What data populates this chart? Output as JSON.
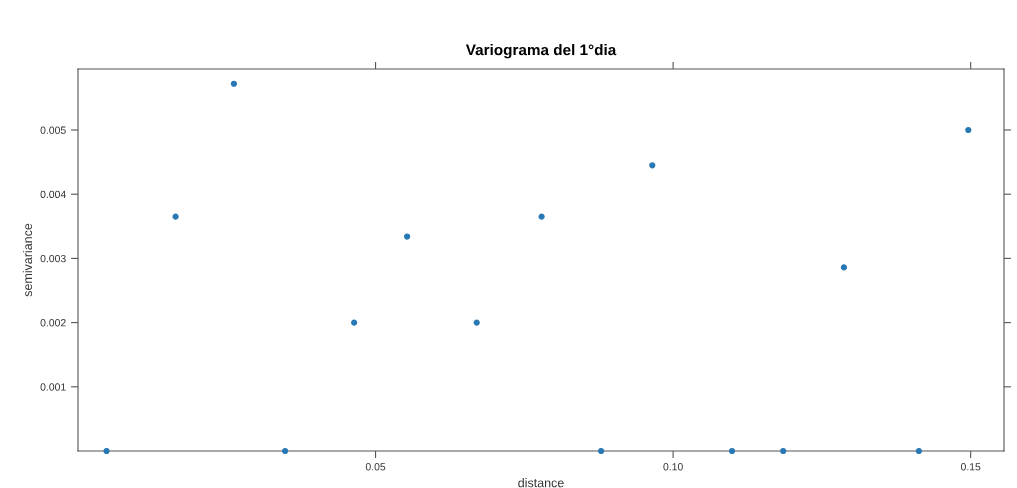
{
  "chart_data": {
    "type": "scatter",
    "title": "Variograma del 1°dia",
    "xlabel": "distance",
    "ylabel": "semivariance",
    "x": [
      0.0048,
      0.0164,
      0.0262,
      0.0348,
      0.0464,
      0.0553,
      0.067,
      0.0779,
      0.0879,
      0.0965,
      0.1099,
      0.1185,
      0.1287,
      0.1413,
      0.1496
    ],
    "series": [
      {
        "color": "#2878b5",
        "values": [
          0,
          0.00365,
          0.00572,
          0,
          0.002,
          0.00334,
          0.002,
          0.00365,
          0,
          0.00445,
          0,
          0,
          0.00286,
          0,
          0.005
        ]
      }
    ],
    "xlim": [
      0,
      0.1556
    ],
    "ylim": [
      0,
      0.00595
    ],
    "xticks": [
      {
        "value": 0.05,
        "label": "0.05"
      },
      {
        "value": 0.1,
        "label": "0.10"
      },
      {
        "value": 0.15,
        "label": "0.15"
      }
    ],
    "yticks": [
      0.001,
      0.002,
      0.003,
      0.004,
      0.005
    ],
    "marker": "circle",
    "grid": false,
    "legend": false
  }
}
